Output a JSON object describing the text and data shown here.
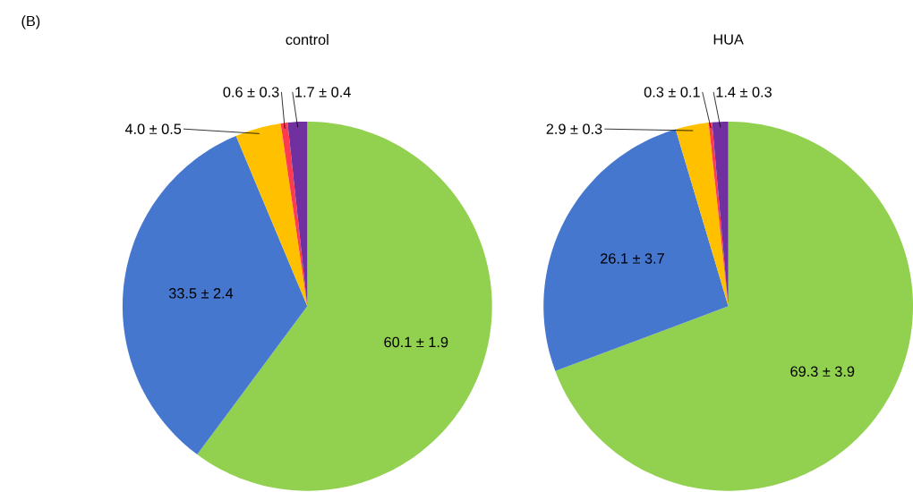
{
  "chart_data": [
    {
      "type": "pie",
      "title": "control",
      "annotations": [
        "(B)"
      ],
      "categories": [
        null,
        null,
        null,
        null,
        null
      ],
      "values": [
        60.1,
        33.5,
        4.0,
        0.6,
        1.7
      ],
      "colors": [
        "#92d050",
        "#4677cf",
        "#ffc000",
        "#ff3b4f",
        "#7030a0"
      ],
      "value_labels": [
        "60.1 ± 1.9",
        "33.5 ± 2.4",
        "4.0 ± 0.5",
        "0.6 ± 0.3",
        "1.7 ± 0.4"
      ]
    },
    {
      "type": "pie",
      "title": "HUA",
      "categories": [
        null,
        null,
        null,
        null,
        null
      ],
      "values": [
        69.3,
        26.1,
        2.9,
        0.3,
        1.4
      ],
      "colors": [
        "#92d050",
        "#4677cf",
        "#ffc000",
        "#ff3b4f",
        "#7030a0"
      ],
      "value_labels": [
        "69.3 ± 3.9",
        "26.1 ± 3.7",
        "2.9 ± 0.3",
        "0.3 ± 0.1",
        "1.4 ± 0.3"
      ]
    }
  ]
}
